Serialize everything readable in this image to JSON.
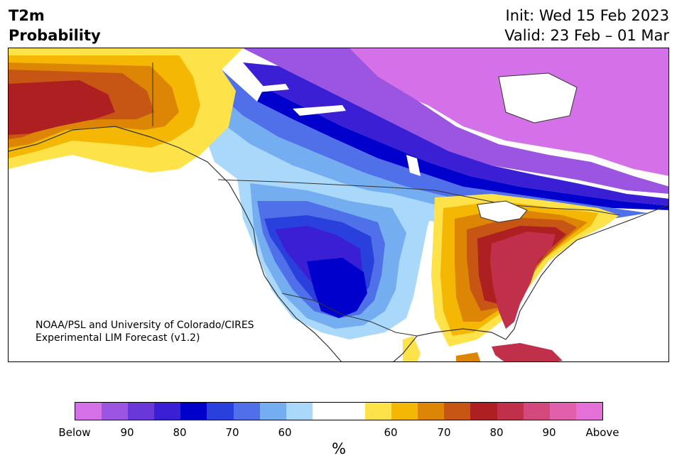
{
  "title": {
    "line1": "T2m",
    "line2": "Probability"
  },
  "dates": {
    "init": "Init: Wed 15 Feb 2023",
    "valid": "Valid: 23 Feb – 01 Mar"
  },
  "credit": {
    "line1": "NOAA/PSL and University of Colorado/CIRES",
    "line2": "Experimental LIM Forecast (v1.2)"
  },
  "colorbar": {
    "unit": "%",
    "colors": [
      "#d470e8",
      "#9b55e0",
      "#6a38d8",
      "#3a1fd4",
      "#0000cc",
      "#2a40dc",
      "#4f70e8",
      "#74aef0",
      "#a9d8fb",
      "#ffffff",
      "#ffffff",
      "#fee24a",
      "#f3b704",
      "#dd8505",
      "#c75513",
      "#ad1f20",
      "#c0304a",
      "#d3497e",
      "#e060ae",
      "#e570d8"
    ],
    "tick_labels": [
      "Below",
      "90",
      "80",
      "70",
      "60",
      "60",
      "70",
      "80",
      "90",
      "Above"
    ]
  },
  "map_palette": {
    "below_purple": "#d470e8",
    "below_violet": "#9b55e0",
    "below_indigo": "#6a38d8",
    "below_deep": "#3a1fd4",
    "below_navy": "#0000cc",
    "below_blue": "#2a40dc",
    "below_mid": "#4f70e8",
    "below_light": "#74aef0",
    "below_pale": "#a9d8fb",
    "above_yellow": "#fee24a",
    "above_gold": "#f3b704",
    "above_orange": "#dd8505",
    "above_burnt": "#c75513",
    "above_red": "#ad1f20",
    "above_crimson": "#c0304a",
    "land_outline": "#333333"
  }
}
